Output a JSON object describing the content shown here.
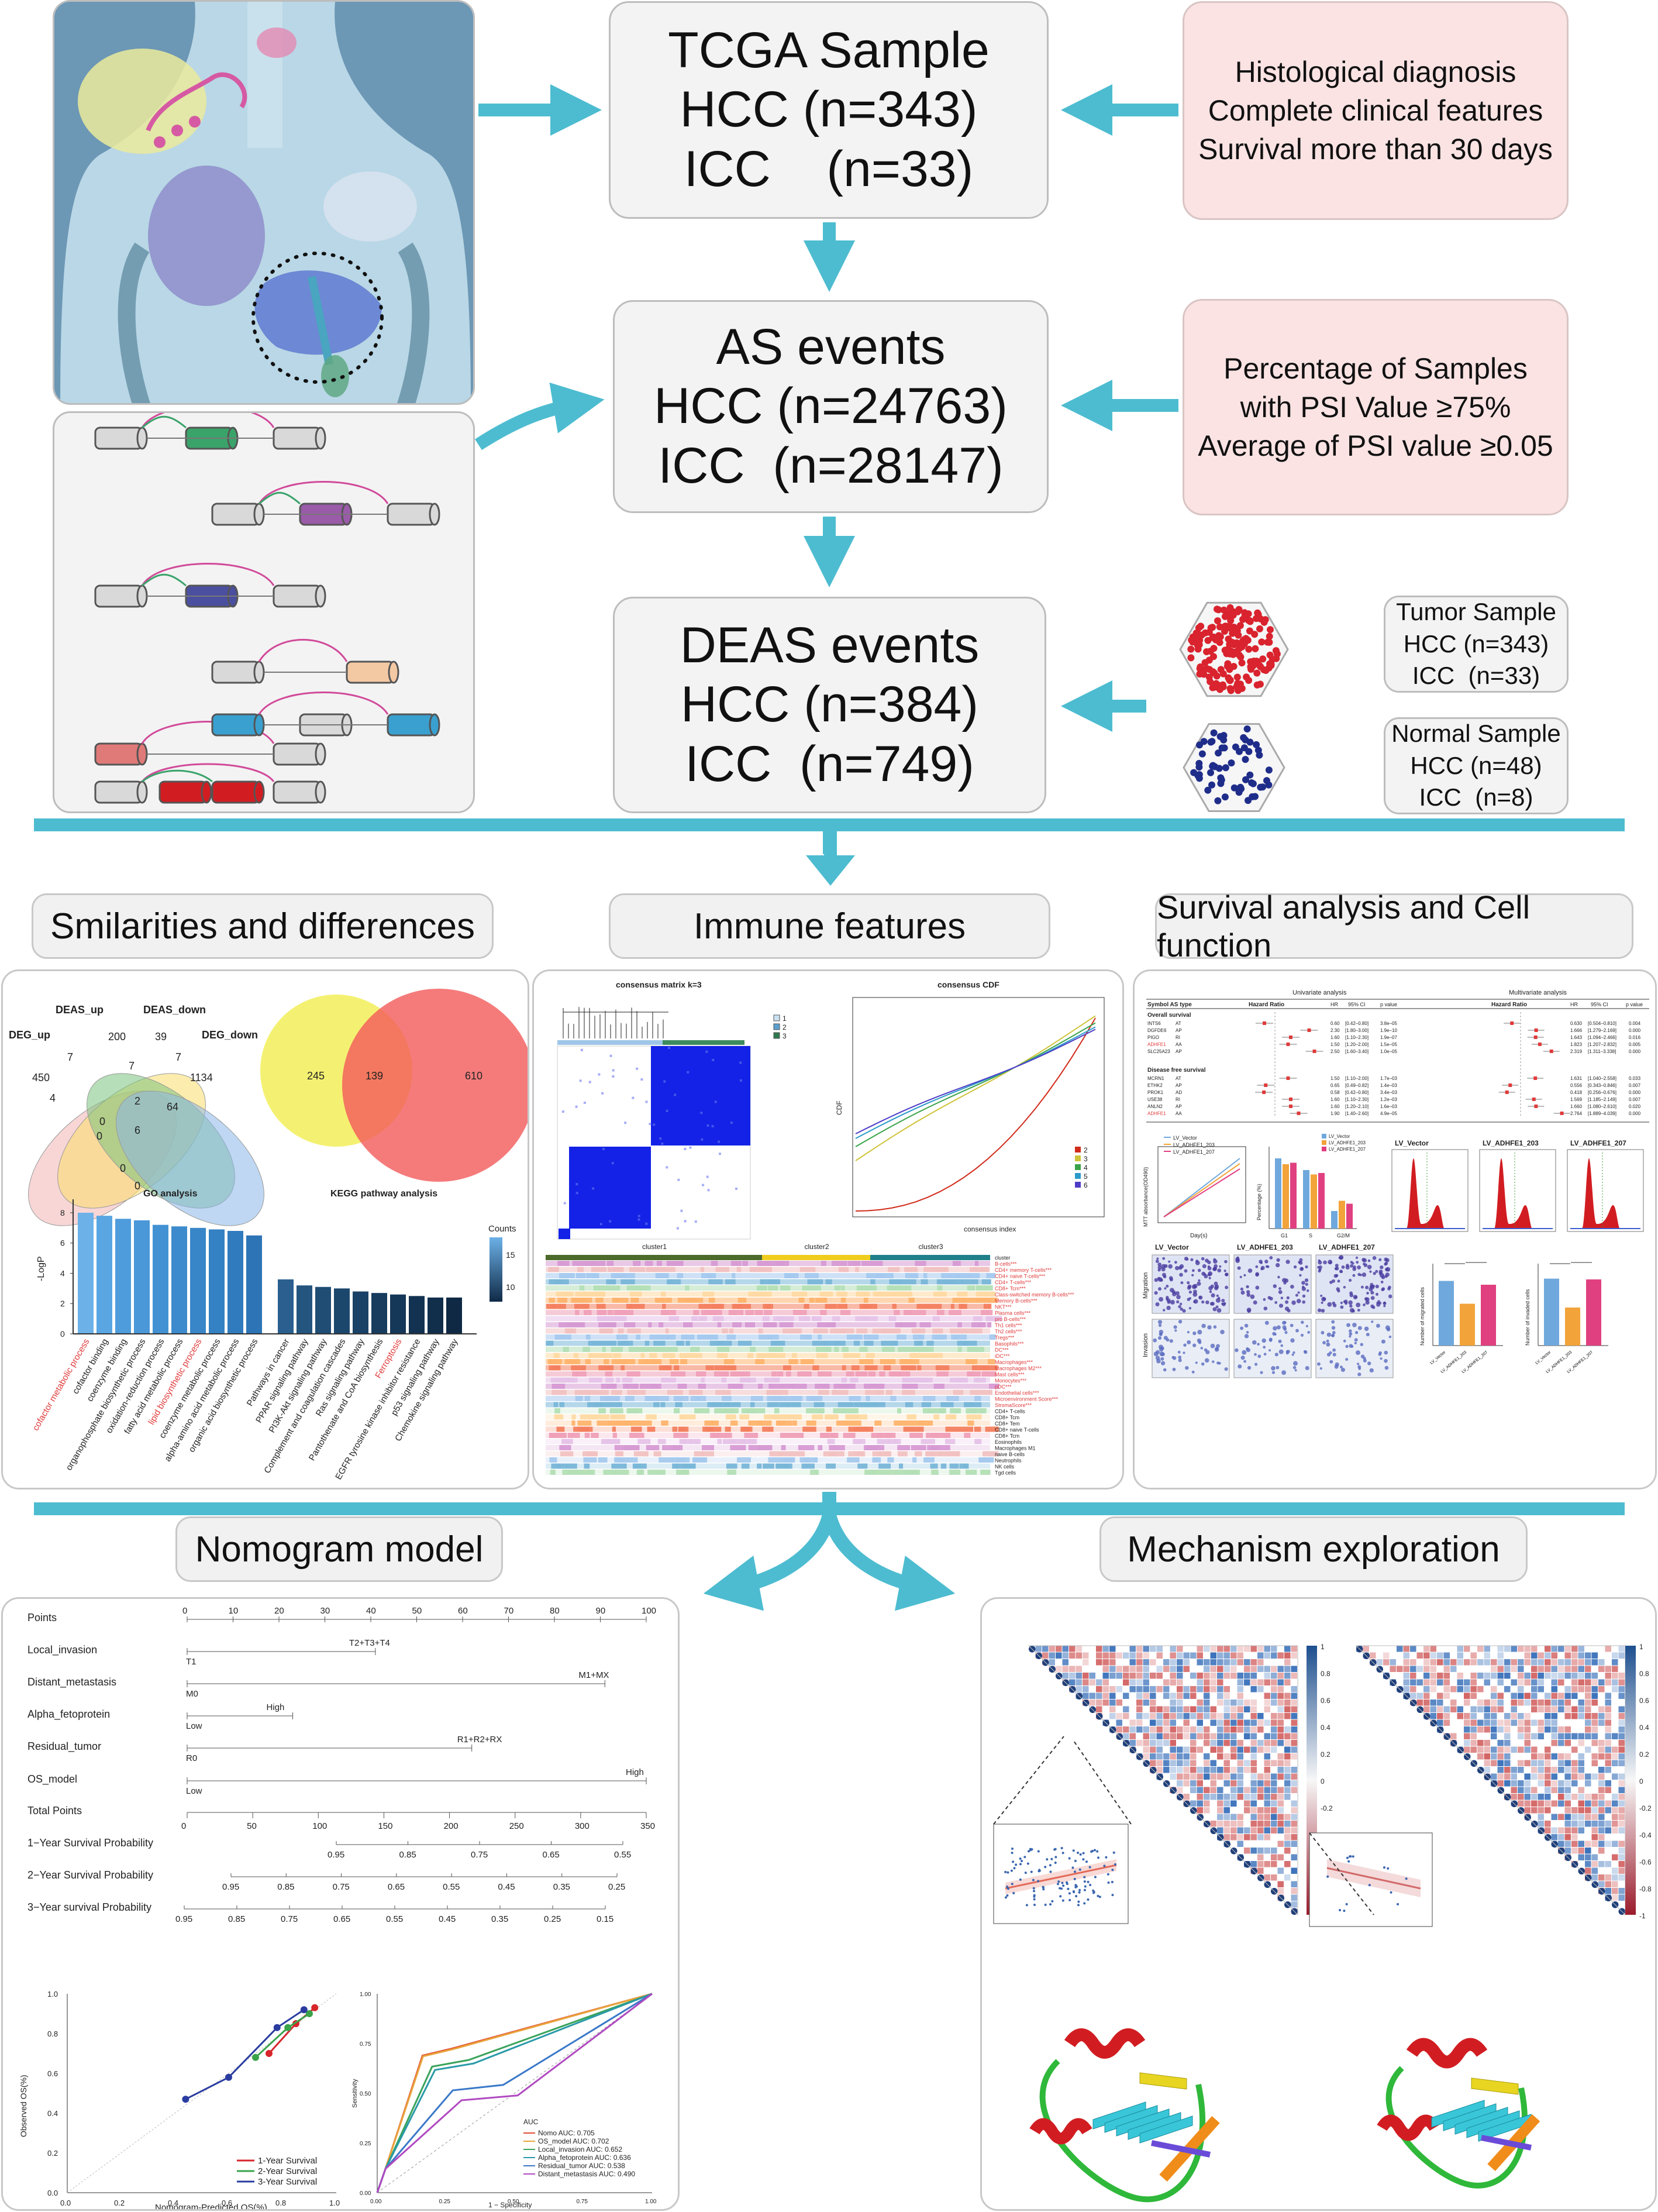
{
  "center_boxes": {
    "tcga": {
      "line1": "TCGA Sample",
      "line2": "HCC (n=343)",
      "line3": "ICC    (n=33)"
    },
    "as_events": {
      "line1": "AS events",
      "line2": "HCC (n=24763)",
      "line3": "ICC  (n=28147)"
    },
    "deas": {
      "line1": "DEAS events",
      "line2": "HCC (n=384)",
      "line3": "ICC  (n=749)"
    }
  },
  "criteria_boxes": {
    "tcga_criteria": {
      "line1": "Histological diagnosis",
      "line2": "Complete clinical features",
      "line3": "Survival more than 30 days"
    },
    "psi_criteria": {
      "line1": "Percentage of Samples",
      "line2": "with PSI Value ≥75%",
      "line3": "Average of PSI value ≥0.05"
    }
  },
  "sample_boxes": {
    "tumor": {
      "line1": "Tumor Sample",
      "line2": "HCC (n=343)",
      "line3": "ICC  (n=33)"
    },
    "normal": {
      "line1": "Normal Sample",
      "line2": "HCC (n=48)",
      "line3": "ICC  (n=8)"
    }
  },
  "section_titles": {
    "similarities": "Smilarities and differences",
    "immune": "Immune features",
    "survival": "Survival analysis and Cell function",
    "nomogram": "Nomogram model",
    "mechanism": "Mechanism exploration"
  },
  "venn4": {
    "labels": {
      "deg_up": "DEG_up",
      "deas_up": "DEAS_up",
      "deas_down": "DEAS_down",
      "deg_down": "DEG_down"
    },
    "counts": [
      "450",
      "200",
      "39",
      "1134",
      "7",
      "7",
      "7",
      "2",
      "6",
      "4",
      "0",
      "64",
      "0",
      "0",
      "0"
    ]
  },
  "venn2": {
    "left": "245",
    "overlap": "139",
    "right": "610"
  },
  "go_kegg": {
    "go_title": "GO analysis",
    "kegg_title": "KEGG pathway analysis",
    "ylabel": "-LogP",
    "legend_title": "Counts",
    "legend_ticks": [
      "15",
      "10"
    ],
    "y_ticks": [
      "8",
      "6",
      "4",
      "2",
      "0"
    ],
    "go_terms": [
      {
        "label": "cofactor metabolic process",
        "value": 8.0,
        "highlight": true
      },
      {
        "label": "cofactor binding",
        "value": 7.8,
        "highlight": false
      },
      {
        "label": "coenzyme binding",
        "value": 7.6,
        "highlight": false
      },
      {
        "label": "organophosphate biosynthetic process",
        "value": 7.5,
        "highlight": false
      },
      {
        "label": "oxidation-reduction process",
        "value": 7.2,
        "highlight": false
      },
      {
        "label": "fatty acid metabolic process",
        "value": 7.1,
        "highlight": false
      },
      {
        "label": "lipid biosynthetic process",
        "value": 7.0,
        "highlight": true
      },
      {
        "label": "coenzyme metabolic process",
        "value": 6.9,
        "highlight": false
      },
      {
        "label": "alpha-amino acid metabolic process",
        "value": 6.8,
        "highlight": false
      },
      {
        "label": "organic acid biosynthetic process",
        "value": 6.5,
        "highlight": false
      }
    ],
    "kegg_terms": [
      {
        "label": "Pathways in cancer",
        "value": 3.6,
        "highlight": false
      },
      {
        "label": "PPAR signaling pathway",
        "value": 3.2,
        "highlight": false
      },
      {
        "label": "PI3K-Akt signaling pathway",
        "value": 3.1,
        "highlight": false
      },
      {
        "label": "Complement and coagulation cascades",
        "value": 3.0,
        "highlight": false
      },
      {
        "label": "Ras signaling pathway",
        "value": 2.8,
        "highlight": false
      },
      {
        "label": "Pantothenate and CoA biosynthesis",
        "value": 2.7,
        "highlight": false
      },
      {
        "label": "Ferroptosis",
        "value": 2.6,
        "highlight": true
      },
      {
        "label": "EGFR tyrosine kinase inhibitor resistance",
        "value": 2.5,
        "highlight": false
      },
      {
        "label": "p53 signaling pathway",
        "value": 2.4,
        "highlight": false
      },
      {
        "label": "Chemokine signaling pathway",
        "value": 2.4,
        "highlight": false
      }
    ]
  },
  "immune": {
    "matrix_title": "consensus matrix k=3",
    "matrix_legend": [
      "1",
      "2",
      "3"
    ],
    "cdf_title": "consensus CDF",
    "cdf_xlabel": "consensus index",
    "cdf_ylabel": "CDF",
    "cdf_legend": [
      "2",
      "3",
      "4",
      "5",
      "6"
    ],
    "clusters": [
      "cluster1",
      "cluster2",
      "cluster3"
    ],
    "heat_rows": [
      "cluster",
      "B-cells***",
      "CD4+ memory T-cells***",
      "CD4+ naive T-cells***",
      "CD4+ T-cells***",
      "CD8+ Tcm***",
      "Class-switched memory B-cells***",
      "Memory B-cells***",
      "NKT***",
      "Plasma cells***",
      "pro B-cells***",
      "Th1 cells***",
      "Th2 cells***",
      "Tregs***",
      "Basophils***",
      "DC***",
      "iDC***",
      "Macrophages***",
      "Macrophages M2***",
      "Mast cells***",
      "Monocytes***",
      "pDC***",
      "Endothelial cells***",
      "Microenvironment Score***",
      "StromaScore***",
      "CD4+ T-cells",
      "CD8+ Tcm",
      "CD8+ Tem",
      "CD8+ naive T-cells",
      "CD8+ Tcm",
      "Eosinophils",
      "Macrophages M1",
      "naive B-cells",
      "Neutrophils",
      "NK cells",
      "Tgd cells"
    ]
  },
  "survival": {
    "univariate": "Univariate analysis",
    "multivariate": "Multivariate analysis",
    "col_symbol": "Symbol AS type",
    "col_hr": "Hazard Ratio",
    "col_hr2": "HR",
    "col_ci": "95% CI",
    "col_p": "p value",
    "os_label": "Overall survival",
    "dfs_label": "Disease free survival",
    "os_rows": [
      {
        "gene": "INTS6",
        "type": "AT",
        "hr": "0.60",
        "ci": "[0.42–0.80]",
        "p": "3.8e–05"
      },
      {
        "gene": "DGFDE6",
        "type": "AP",
        "hr": "2.30",
        "ci": "[1.80–3.00]",
        "p": "1.9e–10"
      },
      {
        "gene": "PIGO",
        "type": "RI",
        "hr": "1.60",
        "ci": "[1.10–2.30]",
        "p": "1.9e–07"
      },
      {
        "gene": "ADHFE1",
        "type": "AA",
        "hr": "1.50",
        "ci": "[1.20–2.00]",
        "p": "1.5e–05"
      },
      {
        "gene": "SLC25A23",
        "type": "AP",
        "hr": "2.50",
        "ci": "[1.60–3.40]",
        "p": "1.0e–05"
      }
    ],
    "os_multi": [
      {
        "hr": "0.630",
        "ci": "[0.504–0.810]",
        "p": "0.004"
      },
      {
        "hr": "1.666",
        "ci": "[1.279–2.169]",
        "p": "0.000"
      },
      {
        "hr": "1.643",
        "ci": "[1.094–2.466]",
        "p": "0.016"
      },
      {
        "hr": "1.823",
        "ci": "[1.207–2.832]",
        "p": "0.005"
      },
      {
        "hr": "2.319",
        "ci": "[1.311–3.338]",
        "p": "0.000"
      }
    ],
    "dfs_rows": [
      {
        "gene": "MCRN1",
        "type": "AT",
        "hr": "1.50",
        "ci": "[1.10–2.00]",
        "p": "1.7e–03"
      },
      {
        "gene": "ETHK2",
        "type": "AP",
        "hr": "0.65",
        "ci": "[0.49–0.82]",
        "p": "1.4e–03"
      },
      {
        "gene": "PROK1",
        "type": "AD",
        "hr": "0.58",
        "ci": "[0.42–0.80]",
        "p": "3.4e–03"
      },
      {
        "gene": "USE38",
        "type": "RI",
        "hr": "1.60",
        "ci": "[1.10–2.30]",
        "p": "1.2e–03"
      },
      {
        "gene": "ANLN2",
        "type": "AP",
        "hr": "1.60",
        "ci": "[1.20–2.10]",
        "p": "1.6e–03"
      },
      {
        "gene": "ADHFE1",
        "type": "AA",
        "hr": "1.90",
        "ci": "[1.40–2.60]",
        "p": "4.9e–05"
      }
    ],
    "dfs_multi": [
      {
        "hr": "1.631",
        "ci": "[1.040–2.558]",
        "p": "0.033"
      },
      {
        "hr": "0.556",
        "ci": "[0.343–0.846]",
        "p": "0.007"
      },
      {
        "hr": "0.418",
        "ci": "[0.256–0.676]",
        "p": "0.000"
      },
      {
        "hr": "1.569",
        "ci": "[1.185–2.149]",
        "p": "0.007"
      },
      {
        "hr": "1.660",
        "ci": "[1.080–2.610]",
        "p": "0.020"
      },
      {
        "hr": "2.764",
        "ci": "[1.889–4.039]",
        "p": "0.000"
      }
    ],
    "mtt_ylabel": "MTT absorbance(OD490)",
    "mtt_xlabel": "Day(s)",
    "mtt_legend": [
      "LV_Vector",
      "LV_ADHFE1_203",
      "LV_ADHFE1_207"
    ],
    "cc_ylabel": "Percentage (%)",
    "cc_legend": [
      "LV_Vector",
      "LV_ADHFE1_203",
      "LV_ADHFE1_207"
    ],
    "cc_x": [
      "G1",
      "S",
      "G2/M"
    ],
    "flow_titles": [
      "LV_Vector",
      "LV_ADHFE1_203",
      "LV_ADHFE1_207"
    ],
    "transwell_titles": [
      "LV_Vector",
      "LV_ADHFE1_203",
      "LV_ADHFE1_207"
    ],
    "transwell_rows": [
      "Migration",
      "Invasion"
    ],
    "bar1_ylabel": "Number of migrated cells",
    "bar2_ylabel": "Number of invaded cells"
  },
  "nomogram": {
    "rows": [
      {
        "label": "Points"
      },
      {
        "label": "Local_invasion",
        "hi": "T2+T3+T4",
        "lo": "T1"
      },
      {
        "label": "Distant_metastasis",
        "hi": "M1+MX",
        "lo": "M0"
      },
      {
        "label": "Alpha_fetoprotein",
        "hi": "High",
        "lo": "Low"
      },
      {
        "label": "Residual_tumor",
        "hi": "R1+R2+RX",
        "lo": "R0"
      },
      {
        "label": "OS_model",
        "hi": "High",
        "lo": "Low"
      },
      {
        "label": "Total Points"
      },
      {
        "label": "1−Year Survival Probability"
      },
      {
        "label": "2−Year Survival Probability"
      },
      {
        "label": "3−Year survival Probability"
      }
    ],
    "points_ticks": [
      "0",
      "10",
      "20",
      "30",
      "40",
      "50",
      "60",
      "70",
      "80",
      "90",
      "100"
    ],
    "total_ticks": [
      "0",
      "50",
      "100",
      "150",
      "200",
      "250",
      "300",
      "350"
    ],
    "y1_ticks": [
      "0.95",
      "0.85",
      "0.75",
      "0.65",
      "0.55"
    ],
    "y2_ticks": [
      "0.95",
      "0.85",
      "0.75",
      "0.65",
      "0.55",
      "0.45",
      "0.35",
      "0.25"
    ],
    "y3_ticks": [
      "0.95",
      "0.85",
      "0.75",
      "0.65",
      "0.55",
      "0.45",
      "0.35",
      "0.25",
      "0.15"
    ]
  },
  "calibration": {
    "xlabel": "Nomogram-Predicted OS(%)",
    "ylabel": "Observed OS(%)",
    "legend": [
      "1-Year Survival",
      "2-Year Survival",
      "3-Year Survival"
    ],
    "ticks": [
      "0.0",
      "0.2",
      "0.4",
      "0.6",
      "0.8",
      "1.0"
    ]
  },
  "roc": {
    "xlabel": "1 − Specificity",
    "ylabel": "Sensitivity",
    "legend_title": "AUC",
    "legend": [
      {
        "name": "Nomo AUC: 0.705",
        "color": "#e24a33"
      },
      {
        "name": "OS_model AUC: 0.702",
        "color": "#e8a33a"
      },
      {
        "name": "Local_invasion AUC: 0.652",
        "color": "#3aa35a"
      },
      {
        "name": "Alpha_fetoprotein AUC: 0.636",
        "color": "#2a9aa8"
      },
      {
        "name": "Residual_tumor AUC: 0.538",
        "color": "#3a78c8"
      },
      {
        "name": "Distant_metastasis AUC: 0.490",
        "color": "#b04ac0"
      }
    ],
    "ticks": [
      "0.00",
      "0.25",
      "0.50",
      "0.75",
      "1.00"
    ]
  },
  "corr": {
    "scale": [
      "1",
      "0.8",
      "0.6",
      "0.4",
      "0.2",
      "0",
      "-0.2",
      "-0.4",
      "-0.6",
      "-0.8",
      "-1"
    ]
  },
  "colors": {
    "arrow": "#4dbcd0",
    "pink": "#fbe3e3",
    "tumor_dots": "#d9232e",
    "normal_dots": "#1f2d8a"
  }
}
